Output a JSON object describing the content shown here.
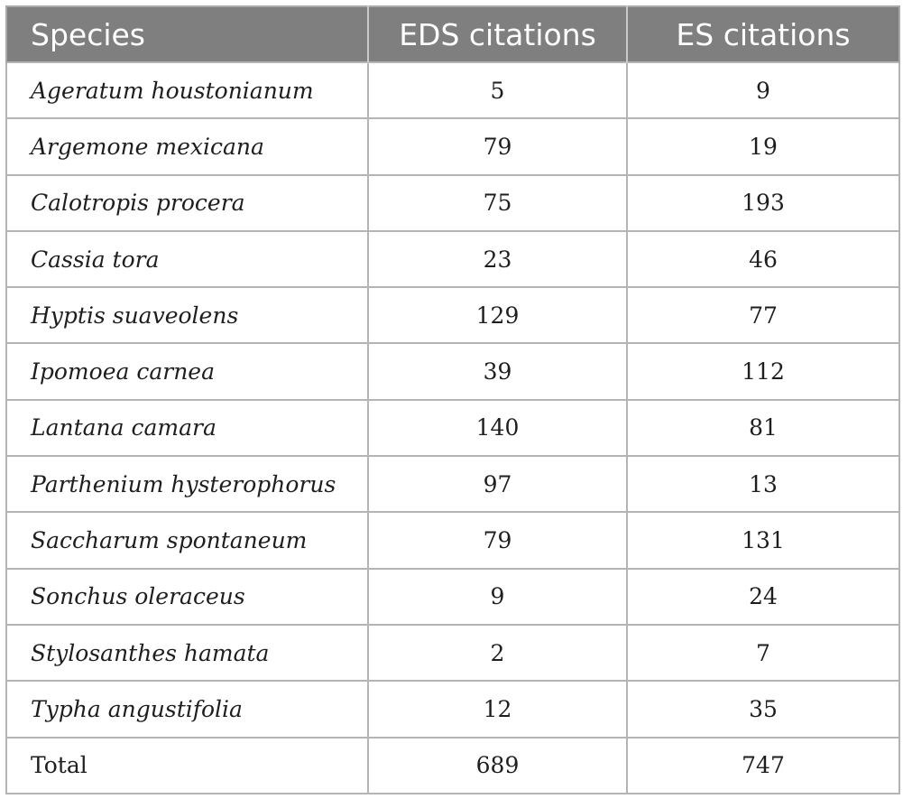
{
  "table": {
    "headers": [
      "Species",
      "EDS citations",
      "ES citations"
    ],
    "rows": [
      {
        "species": "Ageratum houstonianum",
        "eds": "5",
        "es": "9"
      },
      {
        "species": "Argemone mexicana",
        "eds": "79",
        "es": "19"
      },
      {
        "species": "Calotropis procera",
        "eds": "75",
        "es": "193"
      },
      {
        "species": "Cassia tora",
        "eds": "23",
        "es": "46"
      },
      {
        "species": "Hyptis suaveolens",
        "eds": "129",
        "es": "77"
      },
      {
        "species": "Ipomoea carnea",
        "eds": "39",
        "es": "112"
      },
      {
        "species": "Lantana camara",
        "eds": "140",
        "es": "81"
      },
      {
        "species": "Parthenium hysterophorus",
        "eds": "97",
        "es": "13"
      },
      {
        "species": "Saccharum spontaneum",
        "eds": "79",
        "es": "131"
      },
      {
        "species": "Sonchus oleraceus",
        "eds": "9",
        "es": "24"
      },
      {
        "species": "Stylosanthes hamata",
        "eds": "2",
        "es": "7"
      },
      {
        "species": "Typha angustifolia",
        "eds": "12",
        "es": "35"
      }
    ],
    "total": {
      "label": "Total",
      "eds": "689",
      "es": "747"
    }
  },
  "colors": {
    "header_background": "#807f7f",
    "header_text": "#ffffff",
    "grid_lines": "#b4b4b4",
    "body_text": "#1e1e1e"
  }
}
